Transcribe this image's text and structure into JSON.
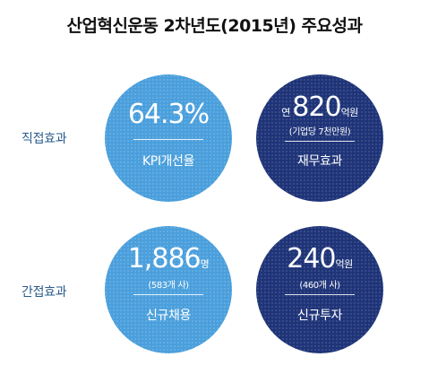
{
  "title": "산업혁신운동 2차년도(2015년) 주요성과",
  "rows": {
    "direct_label": "직접효과",
    "indirect_label": "간접효과"
  },
  "circles": {
    "kpi": {
      "value": "64.3%",
      "caption": "KPI개선율",
      "color": "#4a9fdc"
    },
    "finance": {
      "prefix": "연",
      "value": "820",
      "unit": "억원",
      "sub": "(기업당 7천만원)",
      "caption": "재무효과",
      "color": "#1f3478"
    },
    "hiring": {
      "value": "1,886",
      "unit": "명",
      "sub": "(583개 사)",
      "caption": "신규채용",
      "color": "#4a9fdc"
    },
    "investment": {
      "value": "240",
      "unit": "억원",
      "sub": "(460개 사)",
      "caption": "신규투자",
      "color": "#1f3478"
    }
  }
}
